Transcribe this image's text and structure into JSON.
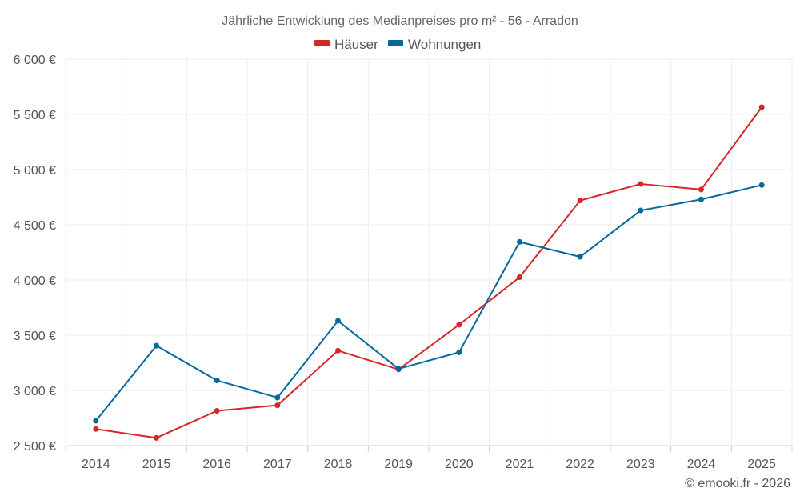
{
  "chart_data": {
    "type": "line",
    "title": "Jährliche Entwicklung des Medianpreises pro m² - 56 - Arradon",
    "categories": [
      "2014",
      "2015",
      "2016",
      "2017",
      "2018",
      "2019",
      "2020",
      "2021",
      "2022",
      "2023",
      "2024",
      "2025"
    ],
    "ylim": [
      2500,
      6000
    ],
    "yticks": [
      2500,
      3000,
      3500,
      4000,
      4500,
      5000,
      5500,
      6000
    ],
    "ytick_labels": [
      "2 500 €",
      "3 000 €",
      "3 500 €",
      "4 000 €",
      "4 500 €",
      "5 000 €",
      "5 500 €",
      "6 000 €"
    ],
    "grid": true,
    "legend_position": "top-center",
    "series": [
      {
        "name": "Häuser",
        "color": "#d62728",
        "values": [
          2650,
          2570,
          2815,
          2865,
          3360,
          3190,
          3595,
          4025,
          4720,
          4870,
          4820,
          5565
        ]
      },
      {
        "name": "Wohnungen",
        "color": "#05699f",
        "values": [
          2725,
          3405,
          3090,
          2935,
          3630,
          3195,
          3345,
          4345,
          4210,
          4630,
          4730,
          4860
        ]
      }
    ]
  },
  "credit": "© emooki.fr - 2026"
}
